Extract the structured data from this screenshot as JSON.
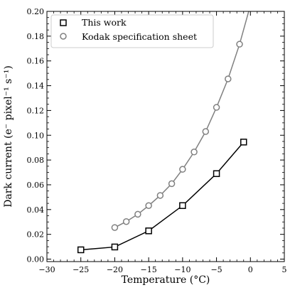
{
  "chart_data": {
    "type": "line",
    "title": "",
    "xlabel": "Temperature (°C)",
    "ylabel": "Dark current (e⁻ pixel⁻¹ s⁻¹)",
    "xlim": [
      -30,
      5
    ],
    "ylim": [
      -0.002,
      0.2
    ],
    "xticks": [
      -30,
      -25,
      -20,
      -15,
      -10,
      -5,
      0,
      5
    ],
    "yticks": [
      0.0,
      0.02,
      0.04,
      0.06,
      0.08,
      0.1,
      0.12,
      0.14,
      0.16,
      0.18,
      0.2
    ],
    "ytick_labels": [
      "0.00",
      "0.02",
      "0.04",
      "0.06",
      "0.08",
      "0.10",
      "0.12",
      "0.14",
      "0.16",
      "0.18",
      "0.20"
    ],
    "grid": false,
    "legend_position": "top-left",
    "series": [
      {
        "name": "This work",
        "marker": "square",
        "line_color": "#000000",
        "marker_color": "#000000",
        "x": [
          -25,
          -20,
          -15,
          -10,
          -5,
          -1
        ],
        "y": [
          0.0075,
          0.0098,
          0.0228,
          0.0432,
          0.069,
          0.0945
        ]
      },
      {
        "name": "Kodak specification sheet",
        "marker": "circle",
        "line_color": "#808080",
        "marker_color": "#808080",
        "x": [
          -20,
          -18.3,
          -16.6,
          -15,
          -13.3,
          -11.6,
          -10,
          -8.3,
          -6.6,
          -5,
          -3.3,
          -1.6,
          0
        ],
        "y": [
          0.0255,
          0.0303,
          0.0362,
          0.0432,
          0.0514,
          0.0609,
          0.0725,
          0.0865,
          0.103,
          0.1225,
          0.1455,
          0.1735,
          0.205
        ]
      }
    ]
  }
}
